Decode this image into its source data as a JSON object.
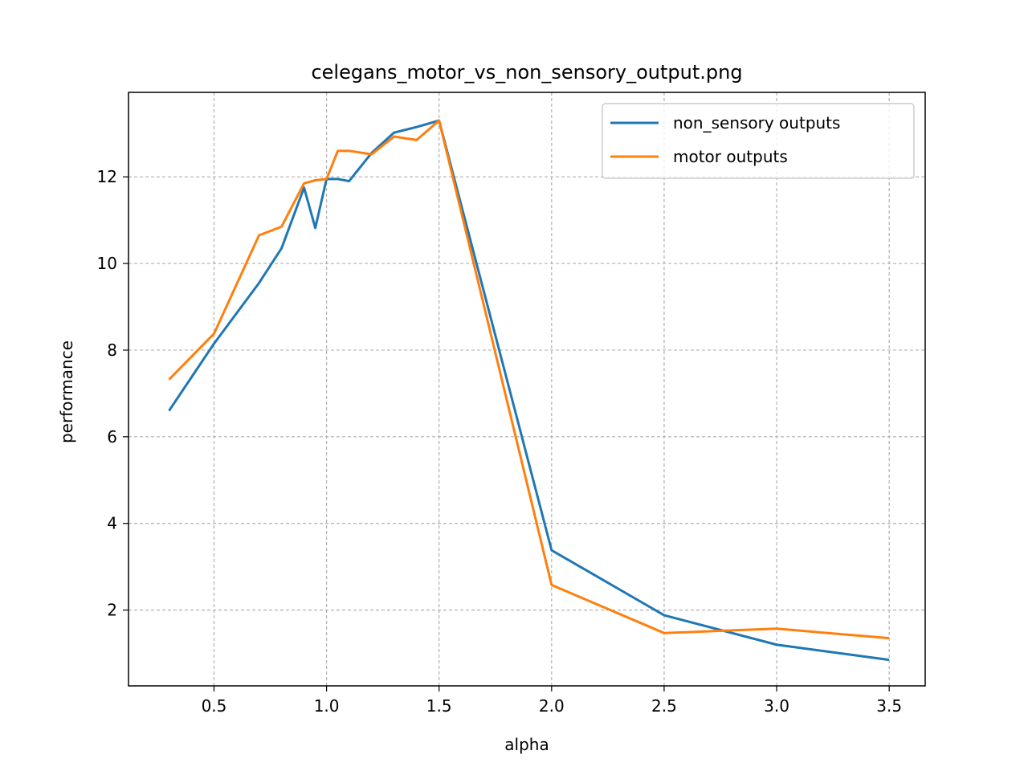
{
  "chart_data": {
    "type": "line",
    "title": "celegans_motor_vs_non_sensory_output.png",
    "xlabel": "alpha",
    "ylabel": "performance",
    "xlim": [
      0.12,
      3.66
    ],
    "ylim": [
      0.25,
      13.95
    ],
    "xticks": [
      0.5,
      1.0,
      1.5,
      2.0,
      2.5,
      3.0,
      3.5
    ],
    "xtick_labels": [
      "0.5",
      "1.0",
      "1.5",
      "2.0",
      "2.5",
      "3.0",
      "3.5"
    ],
    "yticks": [
      2,
      4,
      6,
      8,
      10,
      12
    ],
    "ytick_labels": [
      "2",
      "4",
      "6",
      "8",
      "10",
      "12"
    ],
    "grid": true,
    "legend_position": "top-right",
    "series": [
      {
        "name": "non_sensory outputs",
        "color": "#1f77b4",
        "x": [
          0.3,
          0.5,
          0.7,
          0.8,
          0.9,
          0.95,
          1.0,
          1.05,
          1.1,
          1.2,
          1.3,
          1.4,
          1.5,
          2.0,
          2.5,
          3.0,
          3.5
        ],
        "y": [
          6.6,
          8.15,
          9.55,
          10.35,
          11.75,
          10.82,
          11.95,
          11.95,
          11.9,
          12.55,
          13.02,
          13.15,
          13.3,
          3.38,
          1.88,
          1.2,
          0.85
        ]
      },
      {
        "name": "motor outputs",
        "color": "#ff7f0e",
        "x": [
          0.3,
          0.5,
          0.7,
          0.8,
          0.9,
          0.95,
          1.0,
          1.05,
          1.1,
          1.2,
          1.3,
          1.4,
          1.5,
          2.0,
          2.5,
          3.0,
          3.5
        ],
        "y": [
          7.32,
          8.38,
          10.65,
          10.85,
          11.85,
          11.92,
          11.95,
          12.6,
          12.6,
          12.52,
          12.93,
          12.85,
          13.3,
          2.58,
          1.47,
          1.57,
          1.35
        ]
      }
    ]
  }
}
